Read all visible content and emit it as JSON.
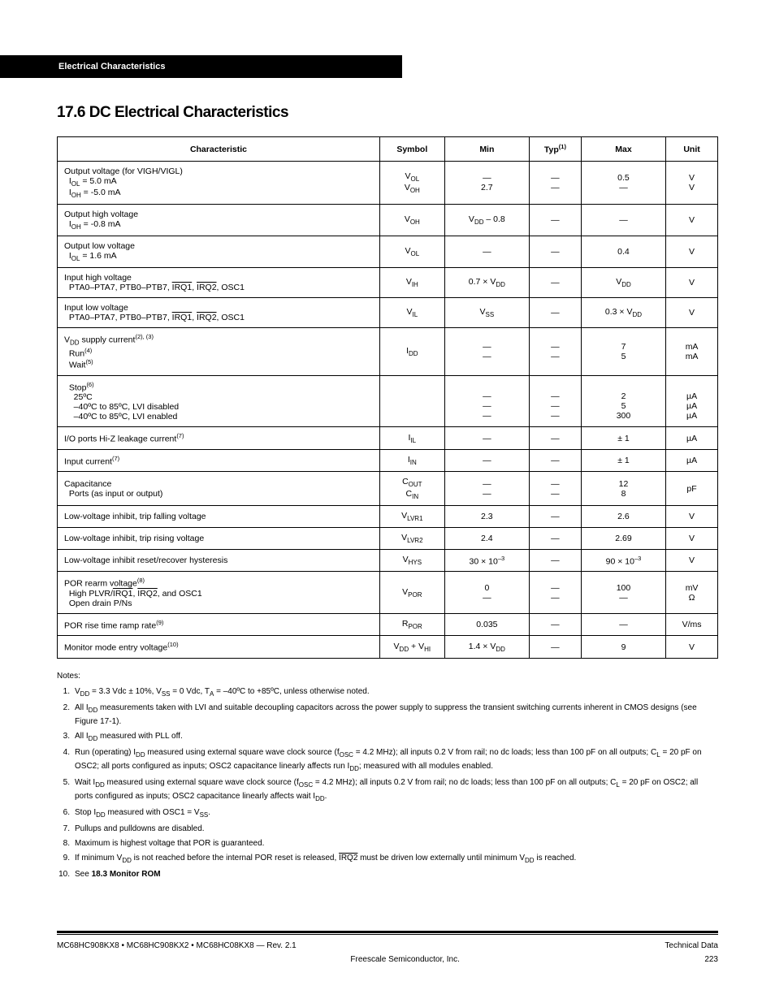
{
  "header_bar": "Electrical Characteristics",
  "section_title": "17.6  DC Electrical Characteristics",
  "columns": [
    "Characteristic",
    "Symbol",
    "Min",
    "Typ",
    "Max",
    "Unit"
  ],
  "rows": [
    {
      "char": "Output voltage (for VIGH/VIGL)<br>&nbsp;&nbsp;I<span class='sub'>OL</span> = 5.0 mA<br>&nbsp;&nbsp;I<span class='sub'>OH</span> = -5.0 mA",
      "sym": "V<span class='sub'>OL</span><br>V<span class='sub'>OH</span>",
      "min": "—<br>2.7",
      "typ": "—<br>—",
      "max": "0.5<br>—",
      "unit": "V<br>V"
    },
    {
      "char": "Output high voltage<br>&nbsp;&nbsp;I<span class='sub'>OH</span> = -0.8 mA",
      "sym": "V<span class='sub'>OH</span>",
      "min": "V<span class='sub'>DD</span> – 0.8",
      "typ": "—",
      "max": "—",
      "unit": "V"
    },
    {
      "char": "Output low voltage<br>&nbsp;&nbsp;I<span class='sub'>OL</span> = 1.6 mA",
      "sym": "V<span class='sub'>OL</span>",
      "min": "—",
      "typ": "—",
      "max": "0.4",
      "unit": "V"
    },
    {
      "char": "Input high voltage<br>&nbsp;&nbsp;PTA0–PTA7, PTB0–PTB7, <span class='ov'>IRQ1</span>, <span class='ov'>IRQ2</span>, OSC1",
      "sym": "V<span class='sub'>IH</span>",
      "min": "0.7 × V<span class='sub'>DD</span>",
      "typ": "—",
      "max": "V<span class='sub'>DD</span>",
      "unit": "V"
    },
    {
      "char": "Input low voltage<br>&nbsp;&nbsp;PTA0–PTA7, PTB0–PTB7, <span class='ov'>IRQ1</span>, <span class='ov'>IRQ2</span>, OSC1",
      "sym": "V<span class='sub'>IL</span>",
      "min": "V<span class='sub'>SS</span>",
      "typ": "—",
      "max": "0.3 × V<span class='sub'>DD</span>",
      "unit": "V"
    },
    {
      "char": "V<span class='sub'>DD</span> supply current<span class='sup'>(2), (3)</span><br>&nbsp;&nbsp;Run<span class='sup'>(4)</span><br>&nbsp;&nbsp;Wait<span class='sup'>(5)</span>",
      "sym": "I<span class='sub'>DD</span>",
      "min": "—<br>—",
      "typ": "—<br>—",
      "max": "7<br>5",
      "unit": "mA<br>mA"
    },
    {
      "char": "&nbsp;&nbsp;Stop<span class='sup'>(6)</span><br>&nbsp;&nbsp;&nbsp;&nbsp;25ºC<br>&nbsp;&nbsp;&nbsp;&nbsp;–40ºC to 85ºC, LVI disabled<br>&nbsp;&nbsp;&nbsp;&nbsp;–40ºC to 85ºC, LVI enabled",
      "sym": "",
      "min": "<br>—<br>—<br>—",
      "typ": "<br>—<br>—<br>—",
      "max": "<br>2<br>5<br>300",
      "unit": "<br>µA<br>µA<br>µA"
    },
    {
      "char": "I/O ports Hi-Z leakage current<span class='sup'>(7)</span>",
      "sym": "I<span class='sub'>IL</span>",
      "min": "—",
      "typ": "—",
      "max": "± 1",
      "unit": "µA"
    },
    {
      "char": "Input current<span class='sup'>(7)</span>",
      "sym": "I<span class='sub'>IN</span>",
      "min": "—",
      "typ": "—",
      "max": "± 1",
      "unit": "µA"
    },
    {
      "char": "Capacitance<br>&nbsp;&nbsp;Ports (as input or output)",
      "sym": "C<span class='sub'>OUT</span><br>C<span class='sub'>IN</span>",
      "min": "—<br>—",
      "typ": "—<br>—",
      "max": "12<br>8",
      "unit": "pF"
    },
    {
      "char": "Low-voltage inhibit, trip falling voltage",
      "sym": "V<span class='sub'>LVR1</span>",
      "min": "2.3",
      "typ": "—",
      "max": "2.6",
      "unit": "V"
    },
    {
      "char": "Low-voltage inhibit, trip rising voltage",
      "sym": "V<span class='sub'>LVR2</span>",
      "min": "2.4",
      "typ": "—",
      "max": "2.69",
      "unit": "V"
    },
    {
      "char": "Low-voltage inhibit reset/recover hysteresis",
      "sym": "V<span class='sub'>HYS</span>",
      "min": "30 × 10<span class='sup'>–3</span>",
      "typ": "—",
      "max": "90 × 10<span class='sup'>–3</span>",
      "unit": "V"
    },
    {
      "char": "POR rearm voltage<span class='sup'>(8)</span><br>&nbsp;&nbsp;High PLVR/<span class='ov'>IRQ1</span>, <span class='ov'>IRQ2</span>, and OSC1<br>&nbsp;&nbsp;Open drain P/Ns",
      "sym": "V<span class='sub'>POR</span>",
      "min": "0<br>—",
      "typ": "—<br>—",
      "max": "100<br>—",
      "unit": "mV<br>Ω"
    },
    {
      "char": "POR rise time ramp rate<span class='sup'>(9)</span>",
      "sym": "R<span class='sub'>POR</span>",
      "min": "0.035",
      "typ": "—",
      "max": "—",
      "unit": "V/ms"
    },
    {
      "char": "Monitor mode entry voltage<span class='sup'>(10)</span>",
      "sym": "V<span class='sub'>DD</span> + V<span class='sub'>HI</span>",
      "min": "1.4 × V<span class='sub'>DD</span>",
      "typ": "—",
      "max": "9",
      "unit": "V"
    }
  ],
  "notes_title": "Notes:",
  "notes": [
    "V<span class='sub'>DD</span> = 3.3 Vdc ± 10%, V<span class='sub'>SS</span> = 0 Vdc, T<span class='sub'>A</span> = –40ºC to +85ºC, unless otherwise noted.",
    "All I<span class='sub'>DD</span> measurements taken with LVI and suitable decoupling capacitors across the power supply to suppress the transient switching currents inherent in CMOS designs (see Figure 17-1).",
    "All I<span class='sub'>DD</span> measured with PLL off.",
    "Run (operating) I<span class='sub'>DD</span> measured using external square wave clock source (f<span class='sub'>OSC</span> = 4.2 MHz); all inputs 0.2 V from rail; no dc loads; less than 100 pF on all outputs; C<span class='sub'>L</span> = 20 pF on OSC2; all ports configured as inputs; OSC2 capacitance linearly affects run I<span class='sub'>DD</span>; measured with all modules enabled.",
    "Wait I<span class='sub'>DD</span> measured using external square wave clock source (f<span class='sub'>OSC</span> = 4.2 MHz); all inputs 0.2 V from rail; no dc loads; less than 100 pF on all outputs; C<span class='sub'>L</span> = 20 pF on OSC2; all ports configured as inputs; OSC2 capacitance linearly affects wait I<span class='sub'>DD</span>.",
    "Stop I<span class='sub'>DD</span> measured with OSC1 = V<span class='sub'>SS</span>.",
    "Pullups and pulldowns are disabled.",
    "Maximum is highest voltage that POR is guaranteed.",
    "If minimum V<span class='sub'>DD</span> is not reached before the internal POR reset is released, <span class='ov'>IRQ2</span> must be driven low externally until minimum V<span class='sub'>DD</span> is reached.",
    "See <b>18.3 Monitor ROM</b>"
  ],
  "footer": {
    "manual": "MC68HC908KX8 • MC68HC908KX2 • MC68HC08KX8 — Rev. 2.1",
    "type": "Technical Data",
    "company": "Freescale Semiconductor, Inc.",
    "page": "223"
  }
}
